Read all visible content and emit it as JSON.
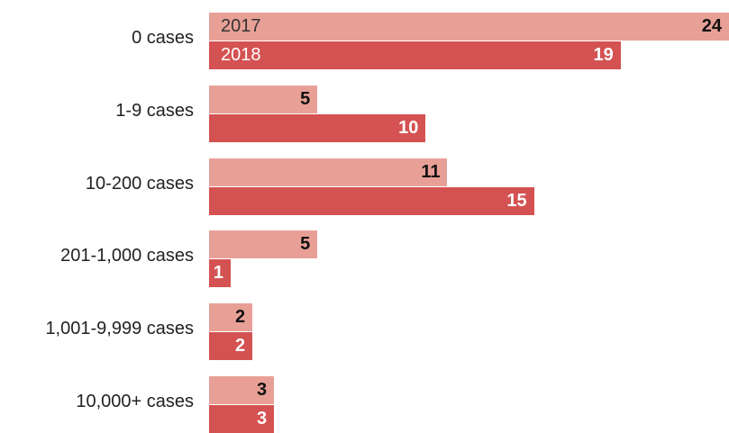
{
  "chart_data": {
    "type": "bar",
    "orientation": "horizontal",
    "categories": [
      "0 cases",
      "1-9 cases",
      "10-200 cases",
      "201-1,000 cases",
      "1,001-9,999 cases",
      "10,000+ cases"
    ],
    "series": [
      {
        "name": "2017",
        "values": [
          24,
          5,
          11,
          5,
          2,
          3
        ],
        "color": "#e8a096",
        "label_color": "#111111"
      },
      {
        "name": "2018",
        "values": [
          19,
          10,
          15,
          1,
          2,
          3
        ],
        "color": "#d45252",
        "label_color": "#ffffff"
      }
    ],
    "xlim": [
      0,
      24
    ],
    "grid": false,
    "legend": "inline labels on first bar pair",
    "title": "",
    "xlabel": "",
    "ylabel": ""
  }
}
